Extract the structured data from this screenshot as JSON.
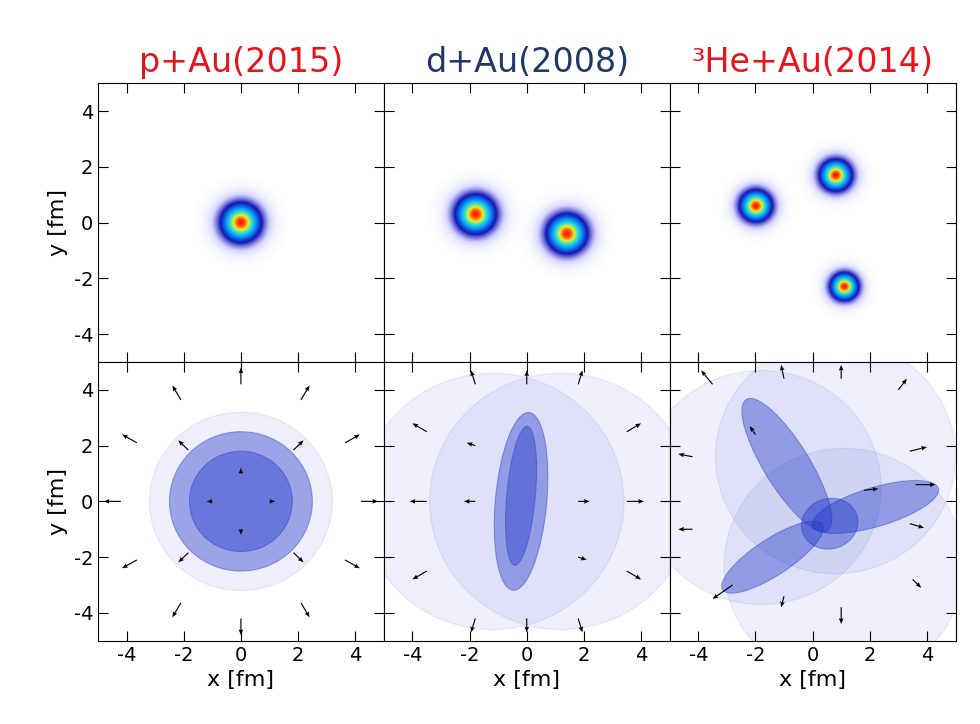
{
  "chart_data": [
    {
      "type": "heatmap",
      "title": "p+Au(2015)",
      "ylabel": "y [fm]",
      "tick_labels": "y",
      "xlim": [
        -5,
        5
      ],
      "ylim": [
        -5,
        5
      ],
      "xticks": [
        -4,
        -2,
        0,
        2,
        4
      ],
      "yticks": [
        -4,
        -2,
        0,
        2,
        4
      ],
      "sources": [
        {
          "x": 0,
          "y": 0,
          "sigma": 0.5
        }
      ]
    },
    {
      "type": "heatmap",
      "title": "d+Au(2008)",
      "tick_labels": false,
      "xlim": [
        -5,
        5
      ],
      "ylim": [
        -5,
        5
      ],
      "xticks": [
        -4,
        -2,
        0,
        2,
        4
      ],
      "yticks": [
        -4,
        -2,
        0,
        2,
        4
      ],
      "sources": [
        {
          "x": -1.8,
          "y": 0.3,
          "sigma": 0.5
        },
        {
          "x": 1.4,
          "y": -0.4,
          "sigma": 0.5
        }
      ]
    },
    {
      "type": "heatmap",
      "title": "³He+Au(2014)",
      "tick_labels": false,
      "xlim": [
        -5,
        5
      ],
      "ylim": [
        -5,
        5
      ],
      "xticks": [
        -4,
        -2,
        0,
        2,
        4
      ],
      "yticks": [
        -4,
        -2,
        0,
        2,
        4
      ],
      "sources": [
        {
          "x": -2.0,
          "y": 0.6,
          "sigma": 0.4
        },
        {
          "x": 0.8,
          "y": 1.7,
          "sigma": 0.4
        },
        {
          "x": 1.1,
          "y": -2.3,
          "sigma": 0.35
        }
      ]
    },
    {
      "type": "flow",
      "xlabel": "x [fm]",
      "ylabel": "y [fm]",
      "xlim": [
        -5,
        5
      ],
      "ylim": [
        -5,
        5
      ],
      "xticks": [
        -4,
        -2,
        0,
        2,
        4
      ],
      "yticks": [
        -4,
        -2,
        0,
        2,
        4
      ],
      "halos": [
        {
          "x": 0,
          "y": 0,
          "radius": 3.2
        }
      ],
      "ellipses": [
        {
          "x": 0,
          "y": 0,
          "width": 5.0,
          "height": 5.0,
          "angle": 0
        },
        {
          "x": 0,
          "y": 0,
          "width": 3.6,
          "height": 3.6,
          "angle": 0
        }
      ],
      "arrows": [
        [
          4.2,
          0,
          0.6,
          0
        ],
        [
          3.64,
          2.1,
          0.52,
          0.3
        ],
        [
          2.1,
          3.64,
          0.3,
          0.52
        ],
        [
          0,
          4.2,
          0,
          0.6
        ],
        [
          -2.1,
          3.64,
          -0.3,
          0.52
        ],
        [
          -3.64,
          2.1,
          -0.52,
          0.3
        ],
        [
          -4.2,
          0,
          -0.6,
          0
        ],
        [
          -3.64,
          -2.1,
          -0.52,
          -0.3
        ],
        [
          -2.1,
          -3.64,
          -0.3,
          -0.52
        ],
        [
          0,
          -4.2,
          0,
          -0.6
        ],
        [
          2.1,
          -3.64,
          0.3,
          -0.52
        ],
        [
          3.64,
          -2.1,
          0.52,
          -0.3
        ],
        [
          1.84,
          1.84,
          0.35,
          0.35
        ],
        [
          -1.84,
          1.84,
          -0.35,
          0.35
        ],
        [
          -1.84,
          -1.84,
          -0.35,
          -0.35
        ],
        [
          1.84,
          -1.84,
          0.35,
          -0.35
        ],
        [
          1.0,
          0,
          0.2,
          0
        ],
        [
          0,
          1.0,
          0,
          0.2
        ],
        [
          -1.0,
          0,
          -0.2,
          0
        ],
        [
          0,
          -1.0,
          0,
          -0.2
        ]
      ]
    },
    {
      "type": "flow",
      "xlabel": "x [fm]",
      "tick_labels": "x",
      "xlim": [
        -5,
        5
      ],
      "ylim": [
        -5,
        5
      ],
      "xticks": [
        -4,
        -2,
        0,
        2,
        4
      ],
      "yticks": [
        -4,
        -2,
        0,
        2,
        4
      ],
      "halos": [
        {
          "x": -1.2,
          "y": 0,
          "radius": 4.6
        },
        {
          "x": 1.2,
          "y": 0,
          "radius": 4.6
        }
      ],
      "ellipses": [
        {
          "x": -0.2,
          "y": 0,
          "width": 1.8,
          "height": 6.4,
          "angle": -5
        },
        {
          "x": -0.2,
          "y": 0.2,
          "width": 1.0,
          "height": 5.0,
          "angle": -5
        }
      ],
      "arrows": [
        [
          -3.5,
          0,
          -0.6,
          0
        ],
        [
          3.5,
          0,
          0.6,
          0
        ],
        [
          -3.5,
          2.5,
          -0.5,
          0.3
        ],
        [
          3.5,
          2.5,
          0.5,
          0.3
        ],
        [
          -3.5,
          -2.5,
          -0.5,
          -0.3
        ],
        [
          3.5,
          -2.5,
          0.5,
          -0.3
        ],
        [
          0,
          4.2,
          0,
          0.5
        ],
        [
          0,
          -4.2,
          0,
          -0.5
        ],
        [
          -1.8,
          4.2,
          -0.15,
          0.5
        ],
        [
          1.8,
          4.2,
          0.15,
          0.5
        ],
        [
          -1.8,
          -4.2,
          -0.15,
          -0.5
        ],
        [
          1.8,
          -4.2,
          0.15,
          -0.5
        ],
        [
          -1.8,
          0,
          -0.4,
          0
        ],
        [
          1.8,
          0,
          0.4,
          0
        ],
        [
          -1.8,
          2,
          -0.3,
          0.1
        ],
        [
          1.8,
          -2,
          0.3,
          -0.1
        ]
      ]
    },
    {
      "type": "flow",
      "xlabel": "x [fm]",
      "tick_labels": "x",
      "xlim": [
        -5,
        5
      ],
      "ylim": [
        -5,
        5
      ],
      "xticks": [
        -4,
        -2,
        0,
        2,
        4
      ],
      "yticks": [
        -4,
        -2,
        0,
        2,
        4
      ],
      "halos": [
        {
          "x": -1.8,
          "y": 0.5,
          "radius": 4.2
        },
        {
          "x": 0.8,
          "y": 1.6,
          "radius": 4.2
        },
        {
          "x": 1.1,
          "y": -2.3,
          "radius": 4.2
        }
      ],
      "ellipses": [
        {
          "x": -0.9,
          "y": 1.3,
          "width": 5.5,
          "height": 1.6,
          "angle": 121
        },
        {
          "x": -1.4,
          "y": -2.0,
          "width": 4.2,
          "height": 1.3,
          "angle": 34
        },
        {
          "x": 2.2,
          "y": -0.2,
          "width": 4.6,
          "height": 1.4,
          "angle": 17
        },
        {
          "x": 0.6,
          "y": -0.8,
          "width": 2.0,
          "height": 1.8,
          "angle": 20
        }
      ],
      "arrows": [
        [
          -3.5,
          4.2,
          -0.4,
          0.5
        ],
        [
          -1.0,
          4.4,
          -0.1,
          0.5
        ],
        [
          1.0,
          4.4,
          0.0,
          0.5
        ],
        [
          3.0,
          4.0,
          0.3,
          0.4
        ],
        [
          3.4,
          1.8,
          0.6,
          0.15
        ],
        [
          3.6,
          0.6,
          0.7,
          0.0
        ],
        [
          3.4,
          -0.8,
          0.5,
          -0.15
        ],
        [
          3.5,
          -2.8,
          0.3,
          -0.3
        ],
        [
          1.0,
          -3.8,
          0.0,
          -0.6
        ],
        [
          -1.0,
          -3.4,
          -0.1,
          -0.4
        ],
        [
          -2.8,
          -3.0,
          -0.7,
          -0.5
        ],
        [
          -4.2,
          -1.0,
          -0.5,
          0.0
        ],
        [
          -4.2,
          1.6,
          -0.5,
          0.1
        ],
        [
          1.8,
          0.4,
          0.5,
          0.05
        ],
        [
          -2.0,
          2.4,
          -0.2,
          0.3
        ]
      ]
    }
  ]
}
